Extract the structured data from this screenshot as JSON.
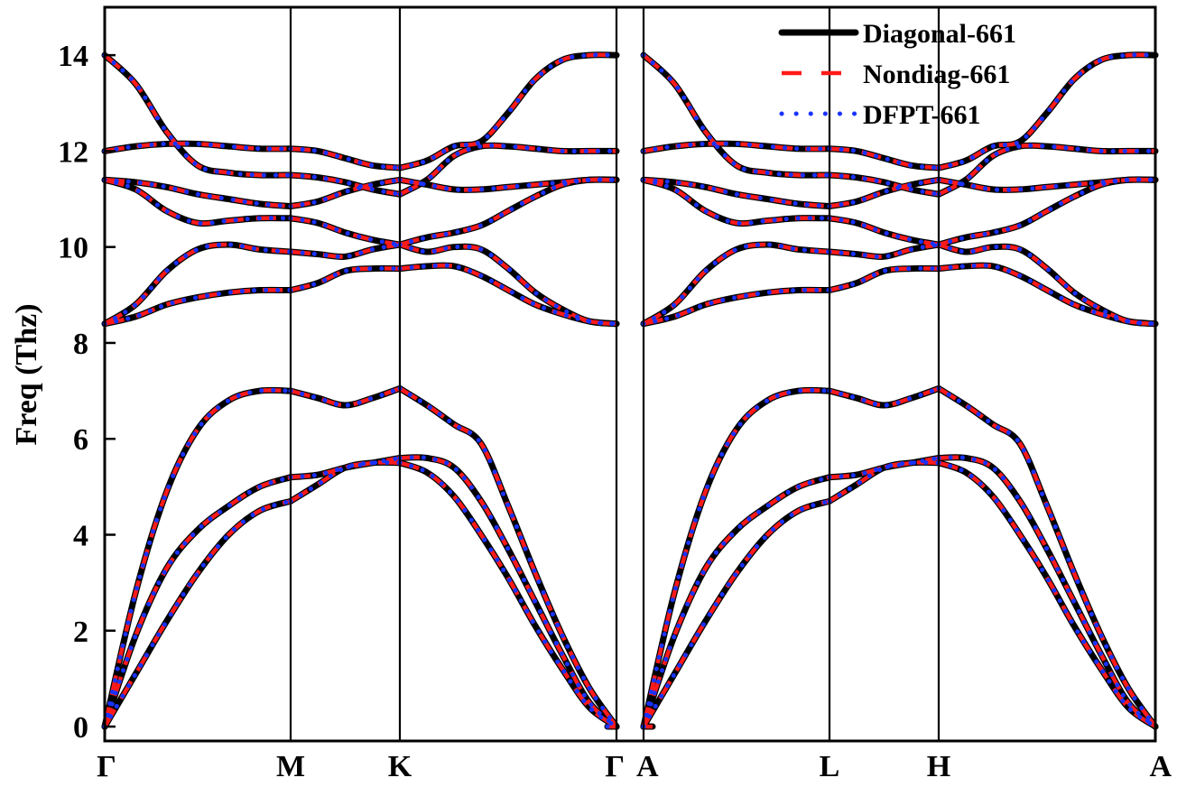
{
  "chart_data": {
    "type": "line",
    "ylabel": "Freq (Thz)",
    "ylim": [
      -0.3,
      15.0
    ],
    "yticks": [
      0,
      2,
      4,
      6,
      8,
      10,
      12,
      14
    ],
    "x_segments": [
      {
        "from": "Γ",
        "to": "M",
        "length": 206
      },
      {
        "from": "M",
        "to": "K",
        "length": 121
      },
      {
        "from": "K",
        "to": "Γ",
        "length": 240
      },
      {
        "from": "A",
        "to": "L",
        "length": 206
      },
      {
        "from": "L",
        "to": "H",
        "length": 121
      },
      {
        "from": "H",
        "to": "A",
        "length": 240
      }
    ],
    "high_symmetry_points": [
      {
        "label": "Γ",
        "x": 0
      },
      {
        "label": "M",
        "x": 206
      },
      {
        "label": "K",
        "x": 327
      },
      {
        "label": "Γ",
        "x": 567
      },
      {
        "label": "A",
        "x": 597
      },
      {
        "label": "L",
        "x": 803
      },
      {
        "label": "H",
        "x": 924
      },
      {
        "label": "A",
        "x": 1164
      }
    ],
    "panel_breaks": [
      [
        567,
        597
      ]
    ],
    "legend_position": "top-right",
    "series": [
      {
        "name": "Diagonal-661",
        "color": "#000000",
        "style": "solid"
      },
      {
        "name": "Nondiag-661",
        "color": "#ff1a1a",
        "style": "dashed"
      },
      {
        "name": "DFPT-661",
        "color": "#1a33ff",
        "style": "dotted"
      }
    ],
    "bands_note": "All three series coincide; bands listed once",
    "bands": [
      {
        "segment": 0,
        "y": [
          0.0,
          1.1,
          2.2,
          3.2,
          4.0,
          4.5,
          4.7
        ]
      },
      {
        "segment": 0,
        "y": [
          0.0,
          1.9,
          3.3,
          4.1,
          4.6,
          5.0,
          5.2
        ]
      },
      {
        "segment": 0,
        "y": [
          0.0,
          2.8,
          4.9,
          6.2,
          6.8,
          7.0,
          7.0
        ]
      },
      {
        "segment": 0,
        "y": [
          8.4,
          8.55,
          8.8,
          8.95,
          9.05,
          9.1,
          9.1
        ]
      },
      {
        "segment": 0,
        "y": [
          8.4,
          8.8,
          9.5,
          9.95,
          10.05,
          9.95,
          9.9
        ]
      },
      {
        "segment": 0,
        "y": [
          11.4,
          11.2,
          10.75,
          10.5,
          10.55,
          10.6,
          10.6
        ]
      },
      {
        "segment": 0,
        "y": [
          11.4,
          11.35,
          11.25,
          11.1,
          11.0,
          10.9,
          10.85
        ]
      },
      {
        "segment": 0,
        "y": [
          12.0,
          12.1,
          12.15,
          12.15,
          12.1,
          12.05,
          12.05
        ]
      },
      {
        "segment": 0,
        "y": [
          14.0,
          13.4,
          12.4,
          11.7,
          11.55,
          11.5,
          11.5
        ]
      },
      {
        "segment": 1,
        "y": [
          4.7,
          5.05,
          5.4,
          5.5,
          5.5
        ]
      },
      {
        "segment": 1,
        "y": [
          5.2,
          5.25,
          5.4,
          5.5,
          5.6
        ]
      },
      {
        "segment": 1,
        "y": [
          7.0,
          6.85,
          6.7,
          6.85,
          7.05
        ]
      },
      {
        "segment": 1,
        "y": [
          9.1,
          9.25,
          9.5,
          9.55,
          9.55
        ]
      },
      {
        "segment": 1,
        "y": [
          9.9,
          9.85,
          9.8,
          9.95,
          10.05
        ]
      },
      {
        "segment": 1,
        "y": [
          10.6,
          10.5,
          10.3,
          10.15,
          10.05
        ]
      },
      {
        "segment": 1,
        "y": [
          10.85,
          10.95,
          11.15,
          11.3,
          11.4
        ]
      },
      {
        "segment": 1,
        "y": [
          11.5,
          11.45,
          11.35,
          11.2,
          11.1
        ]
      },
      {
        "segment": 1,
        "y": [
          12.05,
          12.0,
          11.85,
          11.7,
          11.65
        ]
      },
      {
        "segment": 2,
        "y": [
          5.5,
          5.3,
          4.8,
          4.0,
          3.1,
          2.1,
          1.2,
          0.4,
          0.0
        ]
      },
      {
        "segment": 2,
        "y": [
          5.6,
          5.6,
          5.4,
          4.7,
          3.7,
          2.6,
          1.5,
          0.5,
          0.0
        ]
      },
      {
        "segment": 2,
        "y": [
          7.05,
          6.7,
          6.3,
          5.9,
          4.6,
          3.2,
          1.9,
          0.8,
          0.0
        ]
      },
      {
        "segment": 2,
        "y": [
          9.55,
          9.6,
          9.6,
          9.4,
          9.1,
          8.8,
          8.6,
          8.45,
          8.4
        ]
      },
      {
        "segment": 2,
        "y": [
          10.05,
          9.9,
          10.0,
          9.95,
          9.55,
          9.05,
          8.7,
          8.45,
          8.4
        ]
      },
      {
        "segment": 2,
        "y": [
          10.05,
          10.2,
          10.3,
          10.45,
          10.75,
          11.05,
          11.3,
          11.4,
          11.4
        ]
      },
      {
        "segment": 2,
        "y": [
          11.4,
          11.3,
          11.2,
          11.2,
          11.25,
          11.3,
          11.35,
          11.4,
          11.4
        ]
      },
      {
        "segment": 2,
        "y": [
          11.1,
          11.4,
          11.9,
          12.1,
          12.1,
          12.05,
          12.0,
          12.0,
          12.0
        ]
      },
      {
        "segment": 2,
        "y": [
          11.65,
          11.8,
          12.1,
          12.2,
          12.8,
          13.5,
          13.9,
          14.0,
          14.0
        ]
      },
      {
        "segment": 3,
        "y": [
          0.0,
          1.1,
          2.2,
          3.2,
          4.0,
          4.5,
          4.7
        ]
      },
      {
        "segment": 3,
        "y": [
          0.0,
          1.9,
          3.3,
          4.1,
          4.6,
          5.0,
          5.2
        ]
      },
      {
        "segment": 3,
        "y": [
          0.0,
          2.8,
          4.9,
          6.2,
          6.8,
          7.0,
          7.0
        ]
      },
      {
        "segment": 3,
        "y": [
          8.4,
          8.55,
          8.8,
          8.95,
          9.05,
          9.1,
          9.1
        ]
      },
      {
        "segment": 3,
        "y": [
          8.4,
          8.8,
          9.5,
          9.95,
          10.05,
          9.95,
          9.9
        ]
      },
      {
        "segment": 3,
        "y": [
          11.4,
          11.2,
          10.75,
          10.5,
          10.55,
          10.6,
          10.6
        ]
      },
      {
        "segment": 3,
        "y": [
          11.4,
          11.35,
          11.25,
          11.1,
          11.0,
          10.9,
          10.85
        ]
      },
      {
        "segment": 3,
        "y": [
          12.0,
          12.1,
          12.15,
          12.15,
          12.1,
          12.05,
          12.05
        ]
      },
      {
        "segment": 3,
        "y": [
          14.0,
          13.4,
          12.4,
          11.7,
          11.55,
          11.5,
          11.5
        ]
      },
      {
        "segment": 4,
        "y": [
          4.7,
          5.05,
          5.4,
          5.5,
          5.5
        ]
      },
      {
        "segment": 4,
        "y": [
          5.2,
          5.25,
          5.4,
          5.5,
          5.6
        ]
      },
      {
        "segment": 4,
        "y": [
          7.0,
          6.85,
          6.7,
          6.85,
          7.05
        ]
      },
      {
        "segment": 4,
        "y": [
          9.1,
          9.25,
          9.5,
          9.55,
          9.55
        ]
      },
      {
        "segment": 4,
        "y": [
          9.9,
          9.85,
          9.8,
          9.95,
          10.05
        ]
      },
      {
        "segment": 4,
        "y": [
          10.6,
          10.5,
          10.3,
          10.15,
          10.05
        ]
      },
      {
        "segment": 4,
        "y": [
          10.85,
          10.95,
          11.15,
          11.3,
          11.4
        ]
      },
      {
        "segment": 4,
        "y": [
          11.5,
          11.45,
          11.35,
          11.2,
          11.1
        ]
      },
      {
        "segment": 4,
        "y": [
          12.05,
          12.0,
          11.85,
          11.7,
          11.65
        ]
      },
      {
        "segment": 5,
        "y": [
          5.5,
          5.3,
          4.8,
          4.0,
          3.1,
          2.1,
          1.2,
          0.4,
          0.0
        ]
      },
      {
        "segment": 5,
        "y": [
          5.6,
          5.6,
          5.4,
          4.7,
          3.7,
          2.6,
          1.5,
          0.5,
          0.0
        ]
      },
      {
        "segment": 5,
        "y": [
          7.05,
          6.7,
          6.3,
          5.9,
          4.6,
          3.2,
          1.9,
          0.8,
          0.0
        ]
      },
      {
        "segment": 5,
        "y": [
          9.55,
          9.6,
          9.6,
          9.4,
          9.1,
          8.8,
          8.6,
          8.45,
          8.4
        ]
      },
      {
        "segment": 5,
        "y": [
          10.05,
          9.9,
          10.0,
          9.95,
          9.55,
          9.05,
          8.7,
          8.45,
          8.4
        ]
      },
      {
        "segment": 5,
        "y": [
          10.05,
          10.2,
          10.3,
          10.45,
          10.75,
          11.05,
          11.3,
          11.4,
          11.4
        ]
      },
      {
        "segment": 5,
        "y": [
          11.4,
          11.3,
          11.2,
          11.2,
          11.25,
          11.3,
          11.35,
          11.4,
          11.4
        ]
      },
      {
        "segment": 5,
        "y": [
          11.1,
          11.4,
          11.9,
          12.1,
          12.1,
          12.05,
          12.0,
          12.0,
          12.0
        ]
      },
      {
        "segment": 5,
        "y": [
          11.65,
          11.8,
          12.1,
          12.2,
          12.8,
          13.5,
          13.9,
          14.0,
          14.0
        ]
      },
      {
        "segment": 2,
        "y": [
          0.0,
          0.0
        ],
        "x_range": [
          557,
          567
        ],
        "flat": true
      },
      {
        "segment": 3,
        "y": [
          0.0,
          0.0
        ],
        "x_range": [
          597,
          607
        ],
        "flat": true
      }
    ]
  }
}
